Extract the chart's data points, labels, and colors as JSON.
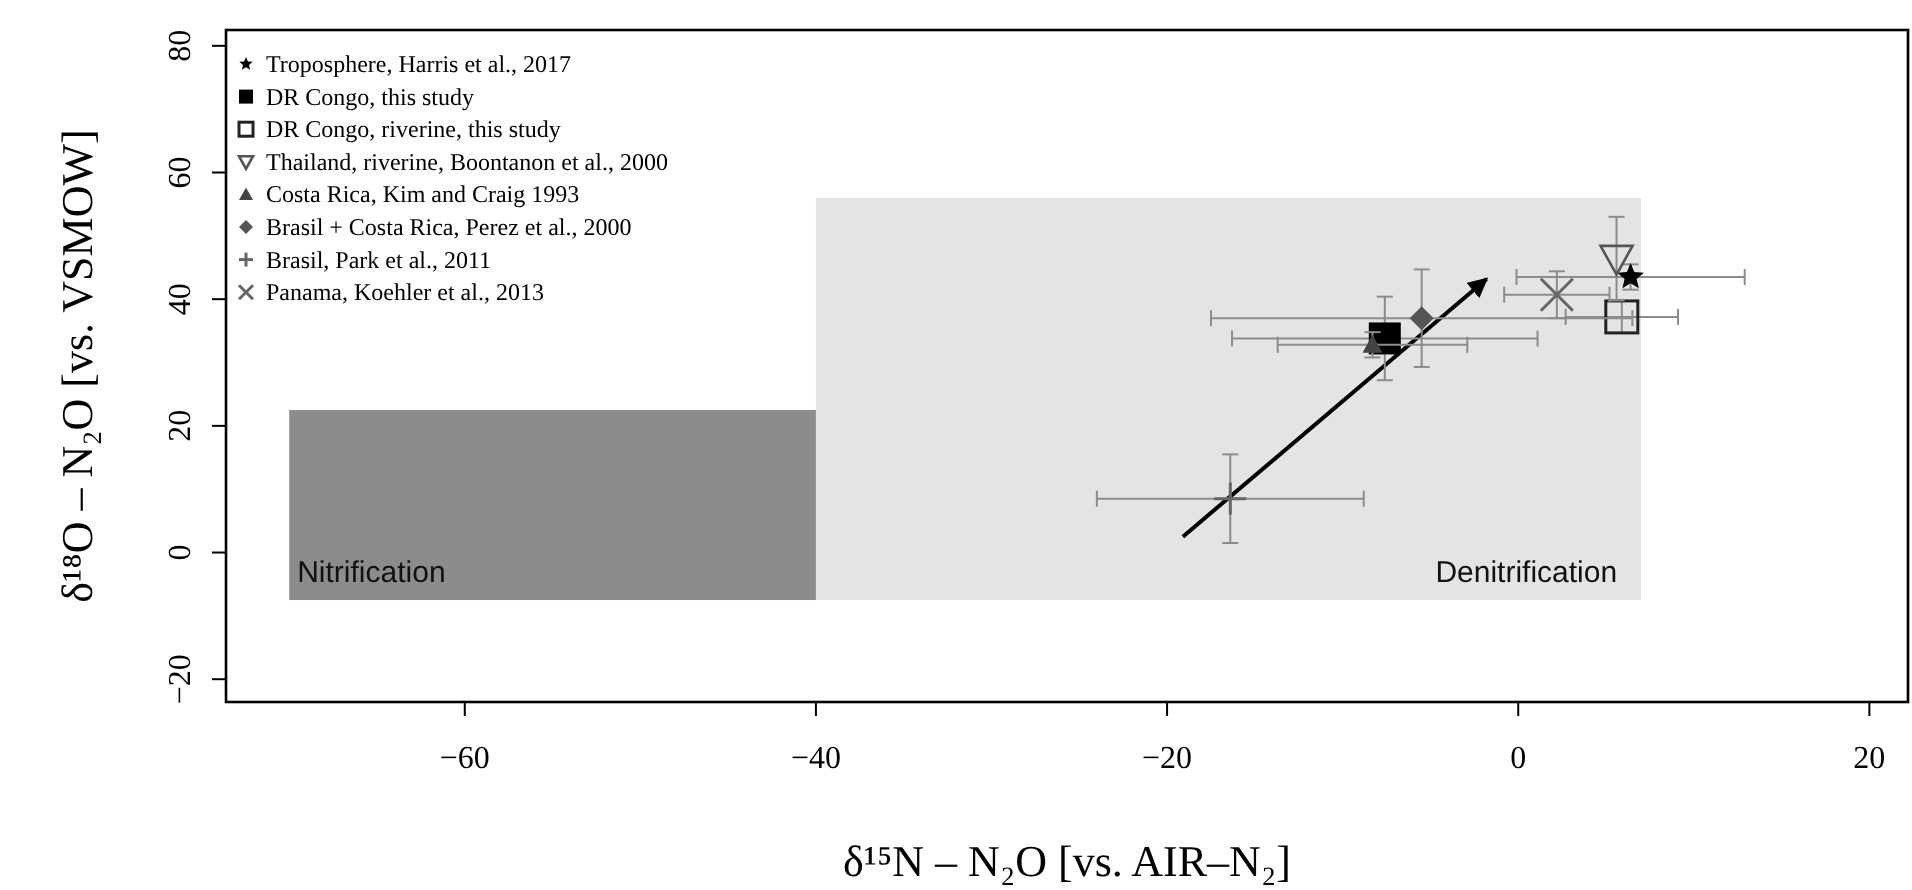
{
  "chart_data": {
    "type": "scatter",
    "xlabel": "δ¹⁵N – N₂O [vs. AIR–N₂]",
    "ylabel": "δ¹⁸O – N₂O [vs. VSMOW]",
    "annotations": [
      {
        "text": "Nitrification",
        "x": -70,
        "y": -7.5
      },
      {
        "text": "Denitrification",
        "x": 7,
        "y": -7.5
      }
    ],
    "xlim": [
      -73.6,
      22.2
    ],
    "ylim": [
      -23.6,
      82.5
    ],
    "xticks": [
      -60,
      -40,
      -20,
      0,
      20
    ],
    "yticks": [
      -20,
      0,
      20,
      40,
      60,
      80
    ],
    "grid": false,
    "legend": "top left",
    "series": [
      {
        "type": "histogram",
        "bins": [
          -70,
          -40,
          7
        ],
        "values": [
          30,
          63.5
        ],
        "base": [
          -7.5,
          -7.5
        ],
        "colors": [
          "#8c8c8c",
          "#e4e4e4"
        ]
      },
      {
        "type": "line",
        "x": [
          -19.1,
          -1.8
        ],
        "values": [
          2.5,
          43.2
        ],
        "color": "#000000",
        "marker": "none",
        "line_style": "solid"
      },
      {
        "name": "Troposphere, Harris et al., 2017",
        "marker": "star",
        "color": "#000000",
        "x": [
          6.4
        ],
        "values": [
          43.5
        ],
        "xerrors": [
          6.5
        ],
        "errors": [
          2
        ]
      },
      {
        "name": "DR Congo, this study",
        "marker": "square",
        "color": "#000000",
        "x": [
          -7.6
        ],
        "values": [
          33.8
        ],
        "xerrors": [
          8.7
        ],
        "errors": [
          6.6
        ]
      },
      {
        "name": "DR Congo, riverine, this study",
        "marker": "square-open",
        "color": "#222222",
        "x": [
          5.9
        ],
        "values": [
          37.2
        ],
        "xerrors": [
          3.2
        ],
        "errors": [
          2.5
        ]
      },
      {
        "name": "Thailand, riverine, Boontanon et al., 2000",
        "marker": "triangle-down-open",
        "color": "#555555",
        "x": [
          5.6
        ],
        "values": [
          46.4
        ],
        "xerrors": [
          null
        ],
        "errors": [
          6.6
        ]
      },
      {
        "name": "Costa Rica, Kim and Craig 1993",
        "marker": "triangle",
        "color": "#444444",
        "x": [
          -8.3
        ],
        "values": [
          32.8
        ],
        "xerrors": [
          5.4
        ],
        "errors": [
          2
        ]
      },
      {
        "name": "Brasil + Costa Rica, Perez et al., 2000",
        "marker": "diamond",
        "color": "#555555",
        "x": [
          -5.5
        ],
        "values": [
          37
        ],
        "xerrors": [
          12
        ],
        "errors": [
          7.7
        ]
      },
      {
        "name": "Brasil, Park et al., 2011",
        "marker": "plus",
        "color": "#666666",
        "x": [
          -16.4
        ],
        "values": [
          8.5
        ],
        "xerrors": [
          7.6
        ],
        "errors": [
          7
        ]
      },
      {
        "name": "Panama, Koehler et al., 2013",
        "marker": "cross",
        "color": "#666666",
        "x": [
          2.2
        ],
        "values": [
          40.7
        ],
        "xerrors": [
          3
        ],
        "errors": [
          3.7
        ]
      }
    ]
  }
}
